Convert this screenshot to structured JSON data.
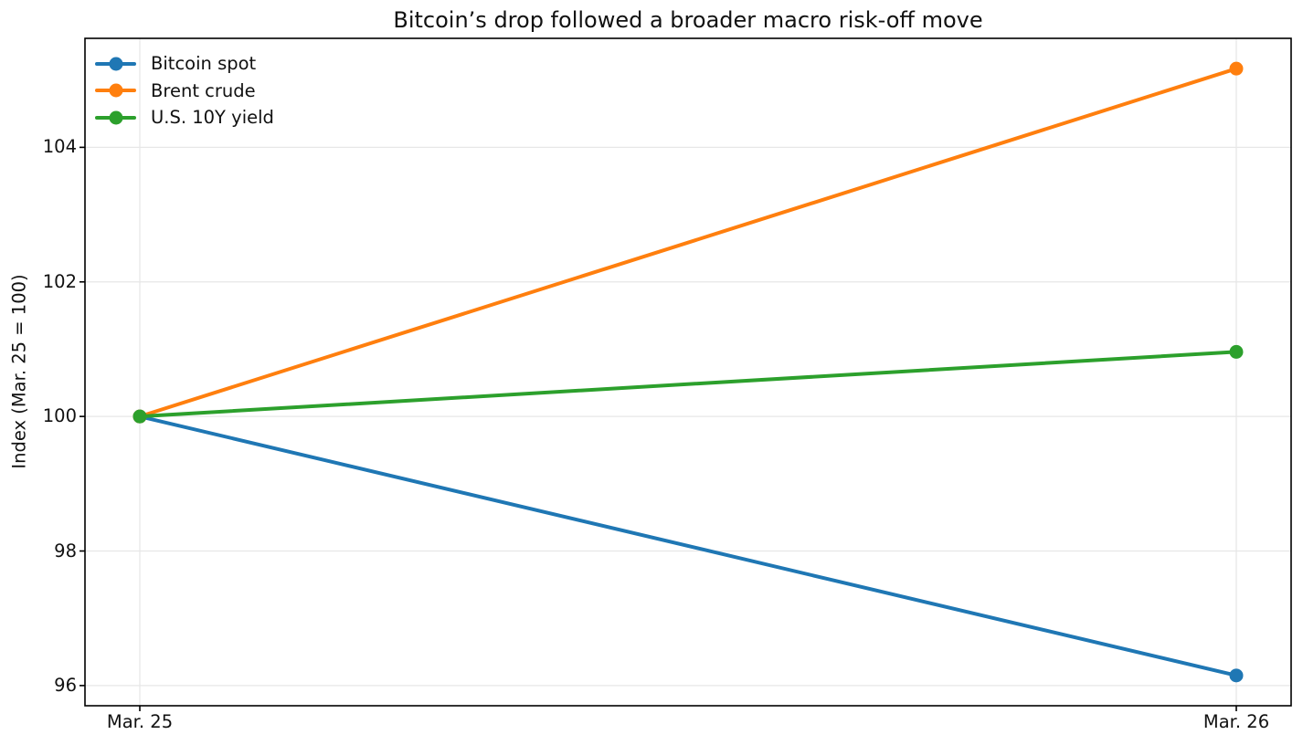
{
  "chart_data": {
    "type": "line",
    "title": "Bitcoin’s drop followed a broader macro risk-off move",
    "ylabel": "Index (Mar. 25 = 100)",
    "xlabel": "",
    "categories": [
      "Mar. 25",
      "Mar. 26"
    ],
    "series": [
      {
        "name": "Bitcoin spot",
        "color": "#1f77b4",
        "values": [
          100,
          96.15
        ]
      },
      {
        "name": "Brent crude",
        "color": "#ff7f0e",
        "values": [
          100,
          105.17
        ]
      },
      {
        "name": "U.S. 10Y yield",
        "color": "#2ca02c",
        "values": [
          100,
          100.96
        ]
      }
    ],
    "yticks": [
      96,
      98,
      100,
      102,
      104
    ],
    "ylim": [
      95.7,
      105.62
    ],
    "grid": true,
    "grid_color": "#e7e7e7",
    "axis_color": "#000000",
    "legend_position": "upper left",
    "background": "#ffffff"
  }
}
